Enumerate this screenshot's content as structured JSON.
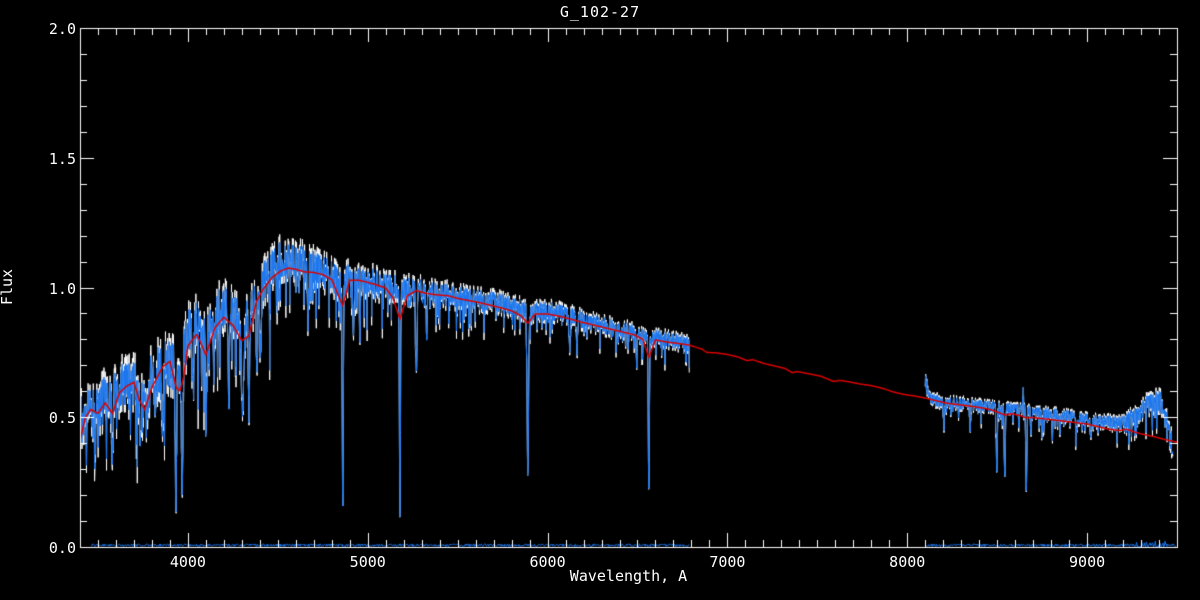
{
  "figure": {
    "title": "G_102-27"
  },
  "chart_data": {
    "type": "line",
    "title": "G_102-27",
    "xlabel": "Wavelength, A",
    "ylabel": "Flux",
    "xlim": [
      3400,
      9500
    ],
    "ylim": [
      0.0,
      2.0
    ],
    "x_major_ticks": [
      4000,
      5000,
      6000,
      7000,
      8000,
      9000
    ],
    "x_minor_step": 100,
    "y_major_ticks": [
      0.0,
      0.5,
      1.0,
      1.5,
      2.0
    ],
    "y_tick_labels": [
      "0.0",
      "0.5",
      "1.0",
      "1.5",
      "2.0"
    ],
    "y_minor_step": 0.1,
    "background": "#000000",
    "axis_color": "#ffffff",
    "grid": false,
    "legend": "none",
    "noise_seed": 77,
    "sample_step_angstrom": 1.8,
    "observed": {
      "description": "observed stellar spectrum, two wavelength segments with gap 6790-8100",
      "segments": [
        [
          3400,
          6788
        ],
        [
          8100,
          9478
        ]
      ],
      "layers": [
        {
          "name": "observed-raw",
          "color": "#ffffff",
          "amp_scale": 1.35,
          "spike_scale": 1.15,
          "line_width": 1
        },
        {
          "name": "observed-smoothed",
          "color": "#1b76ee",
          "amp_scale": 0.95,
          "spike_scale": 1.0,
          "line_width": 1
        }
      ],
      "spike_prob": 0.09,
      "spike_mag": 2.5,
      "continuum": [
        [
          3400,
          0.5
        ],
        [
          3450,
          0.545
        ],
        [
          3500,
          0.55
        ],
        [
          3550,
          0.575
        ],
        [
          3600,
          0.6
        ],
        [
          3650,
          0.62
        ],
        [
          3700,
          0.615
        ],
        [
          3750,
          0.585
        ],
        [
          3800,
          0.65
        ],
        [
          3850,
          0.69
        ],
        [
          3900,
          0.715
        ],
        [
          3950,
          0.64
        ],
        [
          4000,
          0.83
        ],
        [
          4050,
          0.865
        ],
        [
          4100,
          0.83
        ],
        [
          4150,
          0.89
        ],
        [
          4200,
          0.925
        ],
        [
          4250,
          0.905
        ],
        [
          4300,
          0.87
        ],
        [
          4350,
          0.91
        ],
        [
          4400,
          1.0
        ],
        [
          4450,
          1.06
        ],
        [
          4500,
          1.1
        ],
        [
          4550,
          1.115
        ],
        [
          4600,
          1.095
        ],
        [
          4650,
          1.085
        ],
        [
          4700,
          1.075
        ],
        [
          4750,
          1.06
        ],
        [
          4800,
          1.045
        ],
        [
          4860,
          1.0
        ],
        [
          4900,
          1.04
        ],
        [
          5000,
          1.025
        ],
        [
          5100,
          1.005
        ],
        [
          5200,
          0.995
        ],
        [
          5300,
          0.985
        ],
        [
          5400,
          0.975
        ],
        [
          5500,
          0.965
        ],
        [
          5600,
          0.955
        ],
        [
          5700,
          0.945
        ],
        [
          5800,
          0.93
        ],
        [
          5900,
          0.905
        ],
        [
          6000,
          0.91
        ],
        [
          6100,
          0.895
        ],
        [
          6200,
          0.875
        ],
        [
          6300,
          0.855
        ],
        [
          6400,
          0.84
        ],
        [
          6500,
          0.825
        ],
        [
          6560,
          0.8
        ],
        [
          6600,
          0.81
        ],
        [
          6700,
          0.795
        ],
        [
          6790,
          0.78
        ],
        [
          8100,
          0.615
        ],
        [
          8130,
          0.57
        ],
        [
          8200,
          0.558
        ],
        [
          8300,
          0.552
        ],
        [
          8400,
          0.545
        ],
        [
          8500,
          0.538
        ],
        [
          8600,
          0.532
        ],
        [
          8700,
          0.522
        ],
        [
          8800,
          0.512
        ],
        [
          8900,
          0.502
        ],
        [
          9000,
          0.492
        ],
        [
          9100,
          0.482
        ],
        [
          9150,
          0.477
        ],
        [
          9200,
          0.483
        ],
        [
          9250,
          0.5
        ],
        [
          9300,
          0.53
        ],
        [
          9350,
          0.556
        ],
        [
          9400,
          0.565
        ],
        [
          9425,
          0.545
        ],
        [
          9450,
          0.46
        ],
        [
          9478,
          0.375
        ]
      ],
      "noise_amp": [
        [
          3400,
          0.095
        ],
        [
          3600,
          0.1
        ],
        [
          3800,
          0.105
        ],
        [
          4000,
          0.1
        ],
        [
          4200,
          0.09
        ],
        [
          4400,
          0.082
        ],
        [
          4600,
          0.075
        ],
        [
          4800,
          0.065
        ],
        [
          5000,
          0.058
        ],
        [
          5200,
          0.052
        ],
        [
          5400,
          0.048
        ],
        [
          5600,
          0.043
        ],
        [
          5800,
          0.04
        ],
        [
          6000,
          0.038
        ],
        [
          6200,
          0.036
        ],
        [
          6400,
          0.033
        ],
        [
          6790,
          0.03
        ],
        [
          8100,
          0.026
        ],
        [
          8400,
          0.024
        ],
        [
          8700,
          0.024
        ],
        [
          9000,
          0.025
        ],
        [
          9150,
          0.028
        ],
        [
          9300,
          0.038
        ],
        [
          9478,
          0.045
        ]
      ],
      "absorption_lines": [
        [
          3581,
          0.38,
          5
        ],
        [
          3735,
          0.35,
          5
        ],
        [
          3770,
          0.25,
          4
        ],
        [
          3820,
          0.28,
          4
        ],
        [
          3860,
          0.32,
          5
        ],
        [
          3933,
          0.78,
          4
        ],
        [
          3968,
          0.7,
          4
        ],
        [
          4030,
          0.3,
          4
        ],
        [
          4077,
          0.22,
          3
        ],
        [
          4101,
          0.5,
          4
        ],
        [
          4144,
          0.22,
          3
        ],
        [
          4227,
          0.45,
          3
        ],
        [
          4305,
          0.38,
          7
        ],
        [
          4340,
          0.45,
          4
        ],
        [
          4383,
          0.3,
          4
        ],
        [
          4405,
          0.25,
          4
        ],
        [
          4455,
          0.2,
          3
        ],
        [
          4668,
          0.2,
          3
        ],
        [
          4861,
          0.86,
          3
        ],
        [
          4920,
          0.18,
          3
        ],
        [
          4957,
          0.22,
          3
        ],
        [
          5179,
          0.9,
          3
        ],
        [
          5270,
          0.3,
          4
        ],
        [
          5328,
          0.2,
          3
        ],
        [
          5890,
          0.71,
          4
        ],
        [
          6122,
          0.15,
          3
        ],
        [
          6162,
          0.15,
          3
        ],
        [
          6495,
          0.16,
          3
        ],
        [
          6563,
          0.72,
          3
        ],
        [
          8203,
          0.15,
          3
        ],
        [
          8350,
          0.18,
          3
        ],
        [
          8498,
          0.42,
          3
        ],
        [
          8542,
          0.5,
          3
        ],
        [
          8662,
          0.58,
          3
        ],
        [
          8688,
          0.15,
          3
        ],
        [
          8750,
          0.12,
          3
        ],
        [
          8806,
          0.15,
          3
        ],
        [
          8850,
          0.12,
          3
        ],
        [
          8940,
          0.14,
          3
        ],
        [
          9020,
          0.12,
          3
        ],
        [
          8645,
          -0.18,
          2.5
        ],
        [
          8105,
          -0.08,
          3
        ]
      ]
    },
    "model": {
      "name": "model-fit",
      "color": "#dd0000",
      "line_width": 1.5,
      "points": [
        [
          3400,
          0.41
        ],
        [
          3430,
          0.5
        ],
        [
          3460,
          0.53
        ],
        [
          3500,
          0.515
        ],
        [
          3540,
          0.555
        ],
        [
          3580,
          0.515
        ],
        [
          3620,
          0.595
        ],
        [
          3660,
          0.62
        ],
        [
          3700,
          0.635
        ],
        [
          3730,
          0.565
        ],
        [
          3760,
          0.53
        ],
        [
          3800,
          0.615
        ],
        [
          3830,
          0.655
        ],
        [
          3860,
          0.695
        ],
        [
          3900,
          0.715
        ],
        [
          3935,
          0.615
        ],
        [
          3955,
          0.6
        ],
        [
          3975,
          0.65
        ],
        [
          4000,
          0.775
        ],
        [
          4050,
          0.82
        ],
        [
          4100,
          0.74
        ],
        [
          4150,
          0.845
        ],
        [
          4200,
          0.885
        ],
        [
          4250,
          0.855
        ],
        [
          4300,
          0.795
        ],
        [
          4340,
          0.815
        ],
        [
          4380,
          0.945
        ],
        [
          4420,
          0.995
        ],
        [
          4470,
          1.04
        ],
        [
          4520,
          1.065
        ],
        [
          4560,
          1.075
        ],
        [
          4600,
          1.07
        ],
        [
          4650,
          1.06
        ],
        [
          4700,
          1.058
        ],
        [
          4750,
          1.05
        ],
        [
          4800,
          1.03
        ],
        [
          4861,
          0.93
        ],
        [
          4900,
          1.028
        ],
        [
          4950,
          1.028
        ],
        [
          5000,
          1.02
        ],
        [
          5050,
          1.01
        ],
        [
          5100,
          0.998
        ],
        [
          5140,
          0.96
        ],
        [
          5179,
          0.878
        ],
        [
          5220,
          0.968
        ],
        [
          5270,
          0.988
        ],
        [
          5320,
          0.978
        ],
        [
          5380,
          0.972
        ],
        [
          5450,
          0.968
        ],
        [
          5500,
          0.958
        ],
        [
          5560,
          0.95
        ],
        [
          5620,
          0.942
        ],
        [
          5680,
          0.932
        ],
        [
          5740,
          0.922
        ],
        [
          5800,
          0.91
        ],
        [
          5850,
          0.892
        ],
        [
          5890,
          0.862
        ],
        [
          5930,
          0.898
        ],
        [
          6000,
          0.898
        ],
        [
          6060,
          0.89
        ],
        [
          6120,
          0.88
        ],
        [
          6180,
          0.868
        ],
        [
          6240,
          0.858
        ],
        [
          6300,
          0.848
        ],
        [
          6360,
          0.838
        ],
        [
          6420,
          0.828
        ],
        [
          6480,
          0.818
        ],
        [
          6530,
          0.8
        ],
        [
          6563,
          0.73
        ],
        [
          6600,
          0.798
        ],
        [
          6660,
          0.79
        ],
        [
          6720,
          0.785
        ],
        [
          6790,
          0.778
        ],
        [
          6860,
          0.762
        ],
        [
          6885,
          0.75
        ],
        [
          6940,
          0.748
        ],
        [
          7000,
          0.742
        ],
        [
          7060,
          0.732
        ],
        [
          7110,
          0.718
        ],
        [
          7140,
          0.722
        ],
        [
          7200,
          0.708
        ],
        [
          7260,
          0.698
        ],
        [
          7320,
          0.688
        ],
        [
          7360,
          0.672
        ],
        [
          7390,
          0.676
        ],
        [
          7450,
          0.668
        ],
        [
          7520,
          0.658
        ],
        [
          7590,
          0.638
        ],
        [
          7625,
          0.642
        ],
        [
          7680,
          0.636
        ],
        [
          7740,
          0.628
        ],
        [
          7800,
          0.622
        ],
        [
          7860,
          0.612
        ],
        [
          7920,
          0.598
        ],
        [
          7980,
          0.588
        ],
        [
          8040,
          0.582
        ],
        [
          8100,
          0.574
        ],
        [
          8160,
          0.564
        ],
        [
          8220,
          0.554
        ],
        [
          8280,
          0.549
        ],
        [
          8340,
          0.544
        ],
        [
          8400,
          0.538
        ],
        [
          8460,
          0.53
        ],
        [
          8510,
          0.518
        ],
        [
          8545,
          0.508
        ],
        [
          8580,
          0.514
        ],
        [
          8620,
          0.508
        ],
        [
          8662,
          0.498
        ],
        [
          8700,
          0.499
        ],
        [
          8760,
          0.494
        ],
        [
          8820,
          0.489
        ],
        [
          8880,
          0.484
        ],
        [
          8940,
          0.479
        ],
        [
          9000,
          0.474
        ],
        [
          9060,
          0.464
        ],
        [
          9120,
          0.454
        ],
        [
          9180,
          0.449
        ],
        [
          9220,
          0.454
        ],
        [
          9260,
          0.444
        ],
        [
          9300,
          0.436
        ],
        [
          9340,
          0.43
        ],
        [
          9380,
          0.424
        ],
        [
          9420,
          0.416
        ],
        [
          9460,
          0.41
        ],
        [
          9500,
          0.404
        ]
      ]
    },
    "baseline": {
      "name": "zero-level-spectrum",
      "color": "#1b76ee",
      "segments": [
        [
          3465,
          6788
        ],
        [
          8105,
          9498
        ]
      ],
      "level": 0.007,
      "noise": 0.005,
      "bump_region": [
        9260,
        9440,
        0.018
      ]
    }
  }
}
